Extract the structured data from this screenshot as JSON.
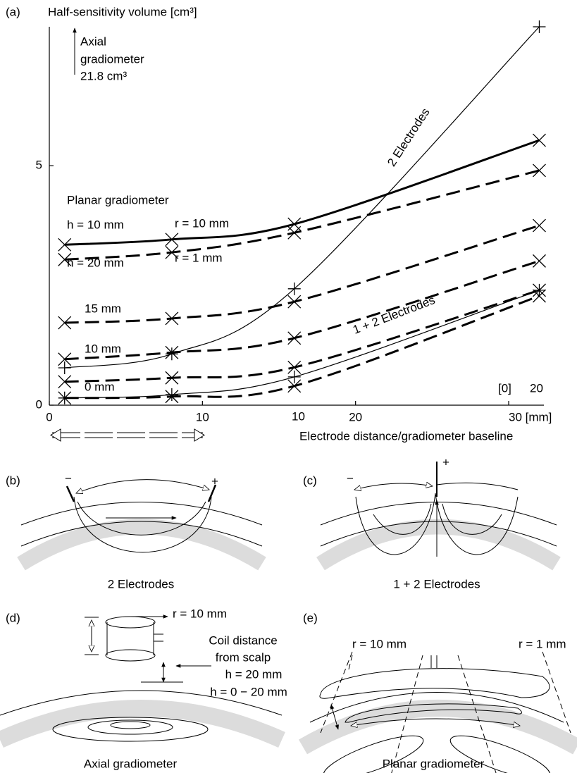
{
  "chart_data": {
    "type": "line",
    "panel_label": "(a)",
    "y_label": "Half-sensitivity volume [cm³]",
    "x_label": "Electrode distance/gradiometer baseline",
    "xlim": [
      0,
      32.3
    ],
    "ylim": [
      0,
      7.9
    ],
    "xticks": [
      0,
      10,
      20,
      {
        "value": 30,
        "label": "30 [mm]"
      }
    ],
    "yticks": [
      0,
      5
    ],
    "x": [
      1,
      8,
      16,
      32
    ],
    "series": [
      {
        "color": "#000000",
        "style": "solid",
        "weight": "bold",
        "marker": "x",
        "values": [
          3.35,
          3.46,
          3.78,
          5.53
        ]
      },
      {
        "color": "#000000",
        "style": "dashed",
        "weight": "bold",
        "marker": "x",
        "values": [
          3.04,
          3.19,
          3.6,
          4.9
        ]
      },
      {
        "color": "#000000",
        "style": "dashed",
        "weight": "bold",
        "marker": "x",
        "values": [
          1.72,
          1.81,
          2.16,
          3.75
        ]
      },
      {
        "color": "#000000",
        "style": "dashed",
        "weight": "bold",
        "marker": "x",
        "values": [
          0.96,
          1.1,
          1.4,
          3.01
        ]
      },
      {
        "color": "#000000",
        "style": "dashed",
        "weight": "bold",
        "marker": "x",
        "values": [
          0.49,
          0.57,
          0.79,
          2.4
        ]
      },
      {
        "color": "#000000",
        "style": "dashed",
        "weight": "bold",
        "marker": "x",
        "values": [
          0.15,
          0.18,
          0.4,
          2.28
        ]
      },
      {
        "color": "#000000",
        "style": "solid",
        "weight": "thin",
        "marker": "+",
        "values": [
          0.78,
          1.07,
          2.43,
          7.9
        ]
      },
      {
        "color": "#000000",
        "style": "solid",
        "weight": "thin",
        "marker": "+",
        "values": [
          0.15,
          0.22,
          0.59,
          2.4
        ]
      }
    ],
    "annotations": [
      "Axial",
      "gradiometer",
      "21.8 cm³",
      "Planar gradiometer",
      "h = 10 mm",
      "r = 10 mm",
      "h = 20 mm",
      "r = 1 mm",
      "15 mm",
      "10 mm",
      "0 mm",
      "10",
      "[0]",
      "20",
      "2 Electrodes",
      "1 + 2 Electrodes"
    ]
  },
  "diagrams": {
    "b": {
      "label": "(b)",
      "caption": "2 Electrodes",
      "minus": "−",
      "plus": "+"
    },
    "c": {
      "label": "(c)",
      "caption": "1 + 2 Electrodes",
      "minus": "−",
      "plus": "+"
    },
    "d": {
      "label": "(d)",
      "caption": "Axial gradiometer",
      "radius": "r = 10 mm",
      "distance_line1": "Coil distance",
      "distance_line2": "from scalp",
      "h_coil": "h = 20 mm",
      "h_range": "h = 0 − 20 mm"
    },
    "e": {
      "label": "(e)",
      "caption": "Planar gradiometer",
      "radius_left": "r = 10 mm",
      "radius_right": "r = 1 mm"
    }
  }
}
